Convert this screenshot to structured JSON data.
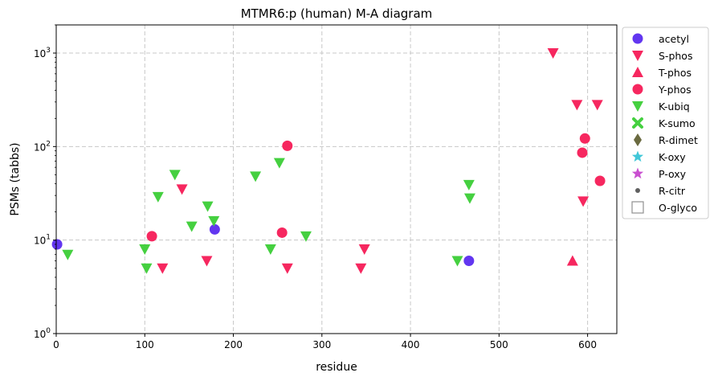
{
  "chart_data": {
    "type": "scatter",
    "title": "MTMR6:p (human) M-A diagram",
    "xlabel": "residue",
    "ylabel": "PSMs (tabbs)",
    "xlim": [
      0,
      633
    ],
    "ylim": [
      1,
      2000
    ],
    "yscale": "log",
    "x_ticks": [
      0,
      100,
      200,
      300,
      400,
      500,
      600
    ],
    "y_ticks": [
      {
        "value": 1,
        "base": "10",
        "exp": "0"
      },
      {
        "value": 10,
        "base": "10",
        "exp": "1"
      },
      {
        "value": 100,
        "base": "10",
        "exp": "2"
      },
      {
        "value": 1000,
        "base": "10",
        "exp": "3"
      }
    ],
    "grid": true,
    "legend_position": "outside-right",
    "series": [
      {
        "name": "acetyl",
        "marker": "circle",
        "color": "#6236f0",
        "points": [
          [
            1,
            9
          ],
          [
            179,
            13
          ],
          [
            466,
            6
          ]
        ]
      },
      {
        "name": "S-phos",
        "marker": "triangle-down",
        "color": "#f6275f",
        "points": [
          [
            561,
            1000
          ],
          [
            588,
            280
          ],
          [
            611,
            280
          ],
          [
            595,
            26
          ],
          [
            142,
            35
          ],
          [
            120,
            5
          ],
          [
            170,
            6
          ],
          [
            261,
            5
          ],
          [
            344,
            5
          ],
          [
            348,
            8
          ]
        ]
      },
      {
        "name": "T-phos",
        "marker": "triangle-up",
        "color": "#f6275f",
        "points": [
          [
            583,
            6
          ]
        ]
      },
      {
        "name": "Y-phos",
        "marker": "circle",
        "color": "#f6275f",
        "points": [
          [
            261,
            102
          ],
          [
            108,
            11
          ],
          [
            255,
            12
          ],
          [
            597,
            122
          ],
          [
            594,
            86
          ],
          [
            614,
            43
          ]
        ]
      },
      {
        "name": "K-ubiq",
        "marker": "triangle-down",
        "color": "#45d040",
        "points": [
          [
            13,
            7
          ],
          [
            100,
            8
          ],
          [
            102,
            5
          ],
          [
            115,
            29
          ],
          [
            134,
            50
          ],
          [
            153,
            14
          ],
          [
            171,
            23
          ],
          [
            178,
            16
          ],
          [
            225,
            48
          ],
          [
            242,
            8
          ],
          [
            252,
            67
          ],
          [
            282,
            11
          ],
          [
            453,
            6
          ],
          [
            466,
            39
          ],
          [
            467,
            28
          ]
        ]
      },
      {
        "name": "K-sumo",
        "marker": "x",
        "color": "#45d040",
        "points": []
      },
      {
        "name": "R-dimet",
        "marker": "diamond",
        "color": "#6a6a40",
        "points": []
      },
      {
        "name": "K-oxy",
        "marker": "star",
        "color": "#41c7d8",
        "points": []
      },
      {
        "name": "P-oxy",
        "marker": "star",
        "color": "#c94fd0",
        "points": []
      },
      {
        "name": "R-citr",
        "marker": "dot",
        "color": "#606060",
        "points": []
      },
      {
        "name": "O-glyco",
        "marker": "square-open",
        "color": "#909090",
        "points": []
      }
    ]
  }
}
